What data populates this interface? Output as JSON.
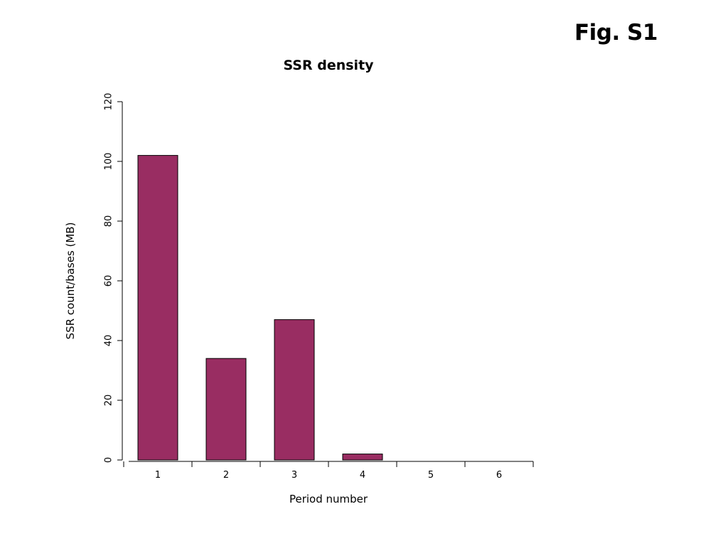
{
  "figure_label": "Fig. S1",
  "colors": {
    "bar_fill": "#992d62",
    "bar_stroke": "#000000",
    "axis": "#000000"
  },
  "chart_data": {
    "type": "bar",
    "title": "SSR density",
    "xlabel": "Period number",
    "ylabel": "SSR count/bases (MB)",
    "categories": [
      "1",
      "2",
      "3",
      "4",
      "5",
      "6"
    ],
    "values": [
      102,
      34,
      47,
      2,
      0,
      0
    ],
    "ylim": [
      0,
      120
    ],
    "yticks": [
      0,
      20,
      40,
      60,
      80,
      100,
      120
    ],
    "grid": false,
    "legend": "none"
  }
}
